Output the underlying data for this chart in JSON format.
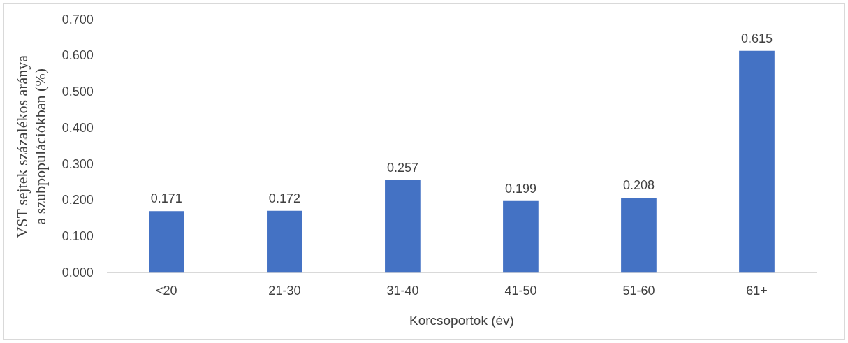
{
  "chart_data": {
    "type": "bar",
    "xlabel": "Korcsoportok (év)",
    "ylabel": "VST sejtek százalékos aránya a szubpopulációkban (%)",
    "categories": [
      "<20",
      "21-30",
      "31-40",
      "41-50",
      "51-60",
      "61+"
    ],
    "values": [
      0.171,
      0.172,
      0.257,
      0.199,
      0.208,
      0.615
    ],
    "color": "#4472c4",
    "ylim": [
      0,
      0.7
    ],
    "yticks": [
      {
        "value": 0,
        "label": "0.000"
      },
      {
        "value": 0.1,
        "label": "0.100"
      },
      {
        "value": 0.2,
        "label": "0.200"
      },
      {
        "value": 0.3,
        "label": "0.300"
      },
      {
        "value": 0.4,
        "label": "0.400"
      },
      {
        "value": 0.5,
        "label": "0.500"
      },
      {
        "value": 0.6,
        "label": "0.600"
      },
      {
        "value": 0.7,
        "label": "0.700"
      }
    ],
    "data_labels": true,
    "grid": false,
    "legend": false
  }
}
